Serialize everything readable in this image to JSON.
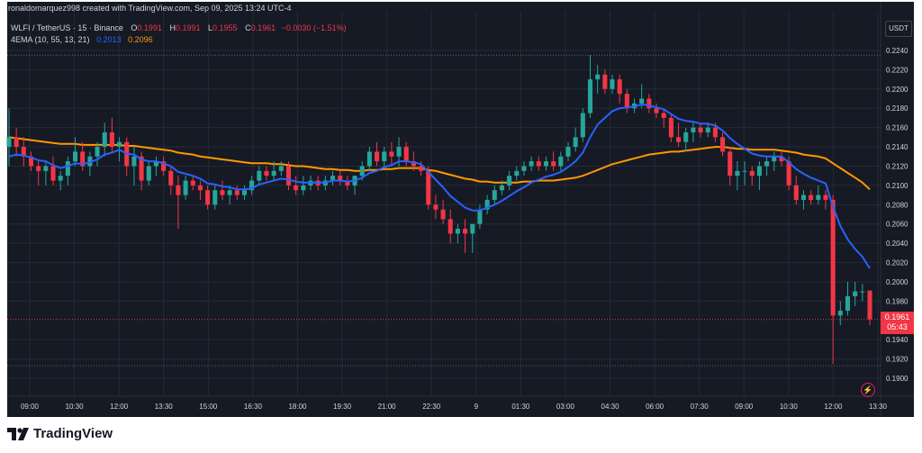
{
  "header": {
    "credit": "ronaldomarquez998 created with TradingView.com, Sep 09, 2025 13:24 UTC-4",
    "symbol_line": "WLFI / TetherUS · 15 · Binance",
    "ohlc": {
      "o_label": "O",
      "o_value": "0.1991",
      "h_label": "H",
      "h_value": "0.1991",
      "l_label": "L",
      "l_value": "0.1955",
      "c_label": "C",
      "c_value": "0.1961",
      "change": "−0.0030 (−1.51%)"
    },
    "indicator": {
      "label": "4EMA (10, 55, 13, 21)",
      "ema_fast_value": "0.2013",
      "ema_slow_value": "0.2096"
    }
  },
  "currency_button": "USDT",
  "last_price": {
    "value": "0.1961",
    "countdown": "05:43"
  },
  "brand": "TradingView",
  "colors": {
    "background": "#161a25",
    "up": "#26a69a",
    "down": "#f23645",
    "ema_fast": "#2962ff",
    "ema_slow": "#ff9800",
    "grid": "#252a36",
    "axis_text": "#d1d4dc"
  },
  "icons": {
    "alert": "lightning-icon",
    "logo": "tradingview-logo-icon"
  },
  "chart_data": {
    "type": "candlestick",
    "title": "WLFI / TetherUS · 15 · Binance",
    "ylim": [
      0.189,
      0.225
    ],
    "y_ticks": [
      "0.2240",
      "0.2220",
      "0.2200",
      "0.2180",
      "0.2160",
      "0.2140",
      "0.2120",
      "0.2100",
      "0.2080",
      "0.2060",
      "0.2040",
      "0.2020",
      "0.2000",
      "0.1980",
      "0.1940",
      "0.1920",
      "0.1900"
    ],
    "x_ticks": [
      "09:00",
      "10:30",
      "12:00",
      "13:30",
      "15:00",
      "16:30",
      "18:00",
      "19:30",
      "21:00",
      "22:30",
      "9",
      "01:30",
      "03:00",
      "04:30",
      "06:00",
      "07:30",
      "09:00",
      "10:30",
      "12:00",
      "13:30"
    ],
    "ohlc": [
      [
        0.214,
        0.218,
        0.212,
        0.215
      ],
      [
        0.215,
        0.216,
        0.213,
        0.214
      ],
      [
        0.214,
        0.215,
        0.212,
        0.213
      ],
      [
        0.213,
        0.2135,
        0.2115,
        0.212
      ],
      [
        0.212,
        0.2125,
        0.21,
        0.2115
      ],
      [
        0.2115,
        0.2125,
        0.21,
        0.212
      ],
      [
        0.212,
        0.213,
        0.21,
        0.2105
      ],
      [
        0.2105,
        0.2115,
        0.2095,
        0.211
      ],
      [
        0.211,
        0.213,
        0.21,
        0.2125
      ],
      [
        0.2125,
        0.215,
        0.212,
        0.2135
      ],
      [
        0.2135,
        0.2145,
        0.2115,
        0.212
      ],
      [
        0.212,
        0.2135,
        0.211,
        0.213
      ],
      [
        0.213,
        0.2145,
        0.212,
        0.214
      ],
      [
        0.214,
        0.2165,
        0.213,
        0.2155
      ],
      [
        0.2155,
        0.217,
        0.2135,
        0.214
      ],
      [
        0.214,
        0.215,
        0.2125,
        0.2145
      ],
      [
        0.2145,
        0.215,
        0.211,
        0.212
      ],
      [
        0.212,
        0.214,
        0.21,
        0.213
      ],
      [
        0.213,
        0.2135,
        0.2095,
        0.2105
      ],
      [
        0.2105,
        0.2125,
        0.21,
        0.212
      ],
      [
        0.212,
        0.213,
        0.211,
        0.2125
      ],
      [
        0.2125,
        0.213,
        0.211,
        0.2115
      ],
      [
        0.2115,
        0.212,
        0.209,
        0.21
      ],
      [
        0.21,
        0.211,
        0.2055,
        0.209
      ],
      [
        0.209,
        0.211,
        0.2085,
        0.2105
      ],
      [
        0.2105,
        0.211,
        0.2095,
        0.21
      ],
      [
        0.21,
        0.2105,
        0.2085,
        0.2095
      ],
      [
        0.2095,
        0.21,
        0.2075,
        0.208
      ],
      [
        0.208,
        0.21,
        0.2075,
        0.2095
      ],
      [
        0.2095,
        0.2105,
        0.2085,
        0.209
      ],
      [
        0.209,
        0.21,
        0.208,
        0.2095
      ],
      [
        0.2095,
        0.21,
        0.2085,
        0.209
      ],
      [
        0.209,
        0.21,
        0.2085,
        0.2095
      ],
      [
        0.2095,
        0.211,
        0.209,
        0.2105
      ],
      [
        0.2105,
        0.212,
        0.21,
        0.2115
      ],
      [
        0.2115,
        0.212,
        0.2105,
        0.211
      ],
      [
        0.211,
        0.2125,
        0.2105,
        0.2115
      ],
      [
        0.2115,
        0.2125,
        0.211,
        0.212
      ],
      [
        0.212,
        0.2125,
        0.2095,
        0.21
      ],
      [
        0.21,
        0.211,
        0.209,
        0.2095
      ],
      [
        0.2095,
        0.211,
        0.209,
        0.21
      ],
      [
        0.21,
        0.211,
        0.2095,
        0.2105
      ],
      [
        0.2105,
        0.211,
        0.2095,
        0.21
      ],
      [
        0.21,
        0.211,
        0.2095,
        0.2105
      ],
      [
        0.2105,
        0.2115,
        0.21,
        0.211
      ],
      [
        0.211,
        0.2115,
        0.21,
        0.2105
      ],
      [
        0.2105,
        0.211,
        0.2095,
        0.21
      ],
      [
        0.21,
        0.211,
        0.209,
        0.211
      ],
      [
        0.211,
        0.2125,
        0.2105,
        0.212
      ],
      [
        0.212,
        0.214,
        0.2115,
        0.2135
      ],
      [
        0.2135,
        0.2145,
        0.212,
        0.2125
      ],
      [
        0.2125,
        0.214,
        0.212,
        0.2135
      ],
      [
        0.2135,
        0.2145,
        0.212,
        0.213
      ],
      [
        0.213,
        0.215,
        0.212,
        0.214
      ],
      [
        0.214,
        0.2145,
        0.212,
        0.2125
      ],
      [
        0.2125,
        0.2135,
        0.2115,
        0.212
      ],
      [
        0.212,
        0.2125,
        0.211,
        0.2115
      ],
      [
        0.2115,
        0.212,
        0.2075,
        0.208
      ],
      [
        0.208,
        0.209,
        0.2065,
        0.2075
      ],
      [
        0.2075,
        0.2085,
        0.206,
        0.2065
      ],
      [
        0.2065,
        0.2075,
        0.204,
        0.205
      ],
      [
        0.205,
        0.206,
        0.204,
        0.2055
      ],
      [
        0.2055,
        0.2065,
        0.203,
        0.205
      ],
      [
        0.205,
        0.206,
        0.203,
        0.206
      ],
      [
        0.206,
        0.208,
        0.2055,
        0.2075
      ],
      [
        0.2075,
        0.209,
        0.207,
        0.2085
      ],
      [
        0.2085,
        0.21,
        0.208,
        0.2095
      ],
      [
        0.2095,
        0.2105,
        0.209,
        0.21
      ],
      [
        0.21,
        0.2115,
        0.2095,
        0.211
      ],
      [
        0.211,
        0.212,
        0.2105,
        0.2115
      ],
      [
        0.2115,
        0.2125,
        0.211,
        0.212
      ],
      [
        0.212,
        0.213,
        0.2115,
        0.2125
      ],
      [
        0.2125,
        0.213,
        0.2115,
        0.212
      ],
      [
        0.212,
        0.213,
        0.2115,
        0.2125
      ],
      [
        0.2125,
        0.2135,
        0.2115,
        0.212
      ],
      [
        0.212,
        0.2135,
        0.2115,
        0.213
      ],
      [
        0.213,
        0.2145,
        0.2125,
        0.214
      ],
      [
        0.214,
        0.216,
        0.2135,
        0.215
      ],
      [
        0.215,
        0.218,
        0.2145,
        0.2175
      ],
      [
        0.2175,
        0.2235,
        0.217,
        0.221
      ],
      [
        0.221,
        0.2225,
        0.2195,
        0.2215
      ],
      [
        0.2215,
        0.222,
        0.2195,
        0.22
      ],
      [
        0.22,
        0.2215,
        0.2195,
        0.221
      ],
      [
        0.221,
        0.2215,
        0.2185,
        0.2195
      ],
      [
        0.2195,
        0.22,
        0.2175,
        0.218
      ],
      [
        0.218,
        0.219,
        0.2175,
        0.2185
      ],
      [
        0.2185,
        0.2205,
        0.218,
        0.219
      ],
      [
        0.219,
        0.2195,
        0.2175,
        0.218
      ],
      [
        0.218,
        0.2185,
        0.217,
        0.2175
      ],
      [
        0.2175,
        0.218,
        0.216,
        0.217
      ],
      [
        0.217,
        0.2175,
        0.2145,
        0.215
      ],
      [
        0.215,
        0.2165,
        0.214,
        0.2145
      ],
      [
        0.2145,
        0.216,
        0.2135,
        0.2155
      ],
      [
        0.2155,
        0.2165,
        0.2145,
        0.216
      ],
      [
        0.216,
        0.2165,
        0.215,
        0.2155
      ],
      [
        0.2155,
        0.2165,
        0.215,
        0.216
      ],
      [
        0.216,
        0.2165,
        0.2145,
        0.215
      ],
      [
        0.215,
        0.2155,
        0.213,
        0.2135
      ],
      [
        0.2135,
        0.214,
        0.21,
        0.211
      ],
      [
        0.211,
        0.2125,
        0.2095,
        0.2115
      ],
      [
        0.2115,
        0.2125,
        0.21,
        0.2115
      ],
      [
        0.2115,
        0.212,
        0.21,
        0.211
      ],
      [
        0.211,
        0.2125,
        0.2095,
        0.212
      ],
      [
        0.212,
        0.213,
        0.211,
        0.2125
      ],
      [
        0.2125,
        0.2135,
        0.2115,
        0.213
      ],
      [
        0.213,
        0.2135,
        0.212,
        0.2125
      ],
      [
        0.2125,
        0.213,
        0.2095,
        0.21
      ],
      [
        0.21,
        0.211,
        0.208,
        0.2085
      ],
      [
        0.2085,
        0.2095,
        0.2075,
        0.209
      ],
      [
        0.209,
        0.2095,
        0.208,
        0.2085
      ],
      [
        0.2085,
        0.21,
        0.208,
        0.209
      ],
      [
        0.209,
        0.2095,
        0.2075,
        0.2085
      ],
      [
        0.2085,
        0.209,
        0.1915,
        0.1965
      ],
      [
        0.1965,
        0.198,
        0.1955,
        0.197
      ],
      [
        0.197,
        0.2,
        0.1965,
        0.1985
      ],
      [
        0.1985,
        0.2,
        0.1975,
        0.199
      ],
      [
        0.199,
        0.1998,
        0.198,
        0.199
      ],
      [
        0.1991,
        0.1991,
        0.1955,
        0.1961
      ]
    ],
    "series": [
      {
        "name": "EMA 10",
        "color": "#2962ff",
        "values": [
          0.213,
          0.2132,
          0.2131,
          0.2129,
          0.2126,
          0.2125,
          0.2121,
          0.2118,
          0.212,
          0.2123,
          0.2122,
          0.2124,
          0.2127,
          0.2132,
          0.2134,
          0.2137,
          0.2133,
          0.2132,
          0.2127,
          0.2125,
          0.2125,
          0.2123,
          0.212,
          0.2114,
          0.2112,
          0.211,
          0.2107,
          0.2102,
          0.2101,
          0.2099,
          0.2098,
          0.2096,
          0.2096,
          0.2097,
          0.2101,
          0.2103,
          0.2105,
          0.2107,
          0.2106,
          0.2104,
          0.2103,
          0.2103,
          0.2103,
          0.2103,
          0.2105,
          0.2105,
          0.2104,
          0.2105,
          0.2108,
          0.2113,
          0.2115,
          0.2119,
          0.2121,
          0.2125,
          0.2125,
          0.2124,
          0.2122,
          0.2114,
          0.2106,
          0.2098,
          0.2089,
          0.2083,
          0.2077,
          0.2074,
          0.2074,
          0.2077,
          0.208,
          0.2084,
          0.2089,
          0.2094,
          0.2098,
          0.2103,
          0.2106,
          0.2109,
          0.2111,
          0.2114,
          0.2119,
          0.2125,
          0.2134,
          0.215,
          0.2163,
          0.217,
          0.2177,
          0.218,
          0.2181,
          0.2182,
          0.2184,
          0.2183,
          0.2181,
          0.2179,
          0.2174,
          0.2169,
          0.2167,
          0.2166,
          0.2164,
          0.2164,
          0.2162,
          0.2157,
          0.2149,
          0.2143,
          0.2138,
          0.2133,
          0.2131,
          0.213,
          0.213,
          0.213,
          0.2124,
          0.2117,
          0.2112,
          0.2108,
          0.2105,
          0.2102,
          0.2078,
          0.2058,
          0.2044,
          0.2034,
          0.2026,
          0.2014
        ]
      },
      {
        "name": "EMA 55",
        "color": "#ff9800",
        "values": [
          0.215,
          0.2149,
          0.2148,
          0.2147,
          0.2146,
          0.2145,
          0.2144,
          0.2143,
          0.2143,
          0.2143,
          0.2142,
          0.2142,
          0.2142,
          0.2142,
          0.2142,
          0.2142,
          0.2141,
          0.2141,
          0.214,
          0.2139,
          0.2138,
          0.2137,
          0.2136,
          0.2134,
          0.2133,
          0.2132,
          0.213,
          0.2129,
          0.2128,
          0.2127,
          0.2126,
          0.2125,
          0.2124,
          0.2123,
          0.2123,
          0.2123,
          0.2122,
          0.2122,
          0.2121,
          0.212,
          0.212,
          0.2119,
          0.2118,
          0.2117,
          0.2117,
          0.2116,
          0.2116,
          0.2115,
          0.2115,
          0.2116,
          0.2116,
          0.2117,
          0.2117,
          0.2118,
          0.2118,
          0.2118,
          0.2118,
          0.2116,
          0.2115,
          0.2113,
          0.2111,
          0.2109,
          0.2107,
          0.2106,
          0.2104,
          0.2104,
          0.2103,
          0.2103,
          0.2103,
          0.2103,
          0.2104,
          0.2104,
          0.2105,
          0.2105,
          0.2105,
          0.2106,
          0.2107,
          0.2108,
          0.211,
          0.2113,
          0.2116,
          0.2119,
          0.2122,
          0.2124,
          0.2126,
          0.2128,
          0.213,
          0.2132,
          0.2133,
          0.2134,
          0.2135,
          0.2135,
          0.2136,
          0.2137,
          0.2138,
          0.2139,
          0.214,
          0.214,
          0.2139,
          0.2138,
          0.2138,
          0.2137,
          0.2137,
          0.2137,
          0.2137,
          0.2136,
          0.2135,
          0.2134,
          0.2132,
          0.2131,
          0.213,
          0.2128,
          0.2123,
          0.2118,
          0.2113,
          0.2108,
          0.2103,
          0.2096
        ]
      }
    ],
    "last_price_line": 0.1961,
    "top_dotted_line": 0.2235,
    "bottom_dotted_line": 0.1913,
    "grid": true,
    "legend": "top-left"
  }
}
